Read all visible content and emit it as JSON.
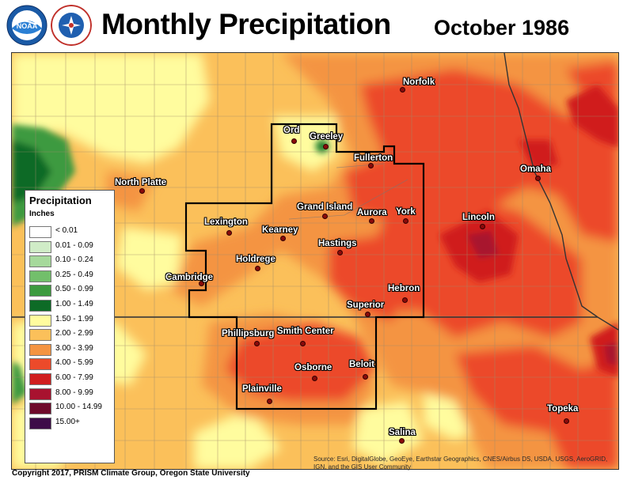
{
  "header": {
    "title": "Monthly Precipitation",
    "period": "October 1986"
  },
  "logos": {
    "noaa": "noaa-logo",
    "nws": "national-weather-service-logo"
  },
  "legend": {
    "title": "Precipitation",
    "units": "Inches",
    "classes": [
      {
        "label": "< 0.01",
        "color": "#ffffff"
      },
      {
        "label": "0.01 - 0.09",
        "color": "#d0ecc7"
      },
      {
        "label": "0.10 - 0.24",
        "color": "#a6d99b"
      },
      {
        "label": "0.25 - 0.49",
        "color": "#72bf6b"
      },
      {
        "label": "0.50 - 0.99",
        "color": "#3d9a3f"
      },
      {
        "label": "1.00 - 1.49",
        "color": "#0d6b26"
      },
      {
        "label": "1.50 - 1.99",
        "color": "#fffc9e"
      },
      {
        "label": "2.00 - 2.99",
        "color": "#fbc05a"
      },
      {
        "label": "3.00 - 3.99",
        "color": "#f49442"
      },
      {
        "label": "4.00 - 5.99",
        "color": "#ec4a2a"
      },
      {
        "label": "6.00 - 7.99",
        "color": "#d01f1f"
      },
      {
        "label": "8.00 - 9.99",
        "color": "#a8122f"
      },
      {
        "label": "10.00 - 14.99",
        "color": "#6e0a2b"
      },
      {
        "label": "15.00+",
        "color": "#3d0c48"
      }
    ]
  },
  "cities": [
    {
      "name": "Norfolk",
      "id": "norfolk"
    },
    {
      "name": "Ord",
      "id": "ord"
    },
    {
      "name": "Greeley",
      "id": "greeley"
    },
    {
      "name": "Fullerton",
      "id": "fullerton"
    },
    {
      "name": "Omaha",
      "id": "omaha"
    },
    {
      "name": "North Platte",
      "id": "north-platte"
    },
    {
      "name": "Grand Island",
      "id": "grand-island"
    },
    {
      "name": "Aurora",
      "id": "aurora"
    },
    {
      "name": "York",
      "id": "york"
    },
    {
      "name": "Lincoln",
      "id": "lincoln"
    },
    {
      "name": "Lexington",
      "id": "lexington"
    },
    {
      "name": "Kearney",
      "id": "kearney"
    },
    {
      "name": "Hastings",
      "id": "hastings"
    },
    {
      "name": "Holdrege",
      "id": "holdrege"
    },
    {
      "name": "Cambridge",
      "id": "cambridge"
    },
    {
      "name": "Hebron",
      "id": "hebron"
    },
    {
      "name": "Superior",
      "id": "superior"
    },
    {
      "name": "Phillipsburg",
      "id": "phillipsburg"
    },
    {
      "name": "Smith Center",
      "id": "smith-center"
    },
    {
      "name": "Beloit",
      "id": "beloit"
    },
    {
      "name": "Osborne",
      "id": "osborne"
    },
    {
      "name": "Plainville",
      "id": "plainville"
    },
    {
      "name": "Topeka",
      "id": "topeka"
    },
    {
      "name": "Salina",
      "id": "salina"
    }
  ],
  "footer": {
    "copyright": "Copyright 2017, PRISM Climate Group, Oregon State University",
    "source": "Source: Esri, DigitalGlobe, GeoEye, Earthstar Geographics, CNES/Airbus DS, USDA, USGS, AeroGRID, IGN, and the GIS User Community"
  }
}
